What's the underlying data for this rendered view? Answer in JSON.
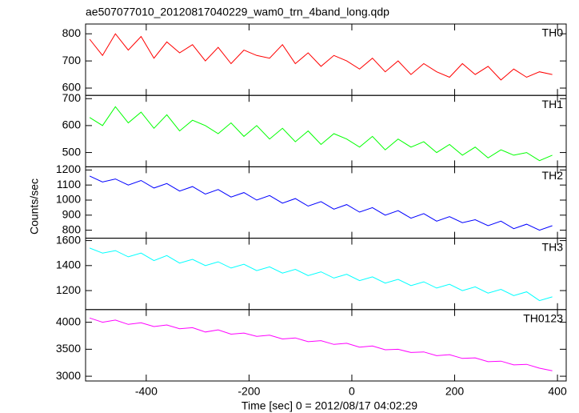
{
  "chart_data": [
    {
      "type": "line",
      "title": "ae507077010_20120817040229_wam0_trn_4band_long.qdp",
      "label": "TH0",
      "color": "#ff0000",
      "x": [
        -510,
        -485,
        -460,
        -435,
        -410,
        -385,
        -360,
        -335,
        -310,
        -285,
        -260,
        -235,
        -210,
        -185,
        -160,
        -135,
        -110,
        -85,
        -60,
        -35,
        -10,
        15,
        40,
        65,
        90,
        115,
        140,
        165,
        190,
        215,
        240,
        265,
        290,
        315,
        340,
        365,
        390
      ],
      "values": [
        780,
        720,
        800,
        740,
        790,
        710,
        770,
        730,
        760,
        700,
        750,
        690,
        740,
        720,
        710,
        760,
        690,
        730,
        680,
        720,
        700,
        670,
        710,
        660,
        700,
        650,
        690,
        660,
        640,
        690,
        650,
        680,
        630,
        670,
        640,
        660,
        650
      ],
      "xlim": [
        -518,
        417
      ],
      "ylim": [
        573,
        836
      ],
      "yticks": [
        600,
        700,
        800
      ]
    },
    {
      "type": "line",
      "label": "TH1",
      "color": "#00ff00",
      "x": [
        -510,
        -485,
        -460,
        -435,
        -410,
        -385,
        -360,
        -335,
        -310,
        -285,
        -260,
        -235,
        -210,
        -185,
        -160,
        -135,
        -110,
        -85,
        -60,
        -35,
        -10,
        15,
        40,
        65,
        90,
        115,
        140,
        165,
        190,
        215,
        240,
        265,
        290,
        315,
        340,
        365,
        390
      ],
      "values": [
        630,
        600,
        670,
        610,
        650,
        590,
        640,
        580,
        620,
        600,
        570,
        610,
        560,
        600,
        550,
        590,
        540,
        580,
        530,
        570,
        550,
        520,
        560,
        510,
        550,
        520,
        540,
        500,
        530,
        490,
        520,
        480,
        510,
        490,
        500,
        470,
        490
      ],
      "xlim": [
        -518,
        417
      ],
      "ylim": [
        447,
        712
      ],
      "yticks": [
        500,
        600,
        700
      ]
    },
    {
      "type": "line",
      "label": "TH2",
      "color": "#0000ff",
      "ylabel": "Counts/sec",
      "x": [
        -510,
        -485,
        -460,
        -435,
        -410,
        -385,
        -360,
        -335,
        -310,
        -285,
        -260,
        -235,
        -210,
        -185,
        -160,
        -135,
        -110,
        -85,
        -60,
        -35,
        -10,
        15,
        40,
        65,
        90,
        115,
        140,
        165,
        190,
        215,
        240,
        265,
        290,
        315,
        340,
        365,
        390
      ],
      "values": [
        1160,
        1120,
        1140,
        1100,
        1130,
        1080,
        1110,
        1060,
        1090,
        1040,
        1070,
        1020,
        1050,
        1000,
        1030,
        980,
        1010,
        960,
        990,
        940,
        970,
        920,
        950,
        900,
        930,
        880,
        910,
        860,
        890,
        850,
        870,
        830,
        860,
        810,
        840,
        800,
        830
      ],
      "xlim": [
        -518,
        417
      ],
      "ylim": [
        747,
        1221
      ],
      "yticks": [
        800,
        900,
        1000,
        1100,
        1200
      ]
    },
    {
      "type": "line",
      "label": "TH3",
      "color": "#00ffff",
      "x": [
        -510,
        -485,
        -460,
        -435,
        -410,
        -385,
        -360,
        -335,
        -310,
        -285,
        -260,
        -235,
        -210,
        -185,
        -160,
        -135,
        -110,
        -85,
        -60,
        -35,
        -10,
        15,
        40,
        65,
        90,
        115,
        140,
        165,
        190,
        215,
        240,
        265,
        290,
        315,
        340,
        365,
        390
      ],
      "values": [
        1540,
        1500,
        1520,
        1470,
        1500,
        1440,
        1480,
        1420,
        1450,
        1400,
        1430,
        1380,
        1410,
        1360,
        1390,
        1340,
        1370,
        1320,
        1350,
        1300,
        1330,
        1280,
        1310,
        1260,
        1290,
        1240,
        1270,
        1220,
        1250,
        1200,
        1230,
        1180,
        1210,
        1160,
        1190,
        1120,
        1150
      ],
      "xlim": [
        -518,
        417
      ],
      "ylim": [
        1048,
        1619
      ],
      "yticks": [
        1200,
        1400,
        1600
      ]
    },
    {
      "type": "line",
      "label": "TH0123",
      "color": "#ff00ff",
      "xlabel": "Time [sec] 0 = 2012/08/17 04:02:29",
      "x": [
        -510,
        -485,
        -460,
        -435,
        -410,
        -385,
        -360,
        -335,
        -310,
        -285,
        -260,
        -235,
        -210,
        -185,
        -160,
        -135,
        -110,
        -85,
        -60,
        -35,
        -10,
        15,
        40,
        65,
        90,
        115,
        140,
        165,
        190,
        215,
        240,
        265,
        290,
        315,
        340,
        365,
        390
      ],
      "values": [
        4080,
        4000,
        4040,
        3960,
        3990,
        3920,
        3950,
        3880,
        3900,
        3820,
        3860,
        3780,
        3800,
        3740,
        3760,
        3690,
        3710,
        3640,
        3660,
        3590,
        3610,
        3540,
        3560,
        3490,
        3500,
        3440,
        3450,
        3380,
        3400,
        3330,
        3340,
        3270,
        3280,
        3210,
        3220,
        3150,
        3100
      ],
      "xlim": [
        -518,
        417
      ],
      "ylim": [
        2912,
        4235
      ],
      "yticks": [
        3000,
        3500,
        4000
      ],
      "xticks": [
        -400,
        -200,
        0,
        200,
        400
      ]
    }
  ]
}
